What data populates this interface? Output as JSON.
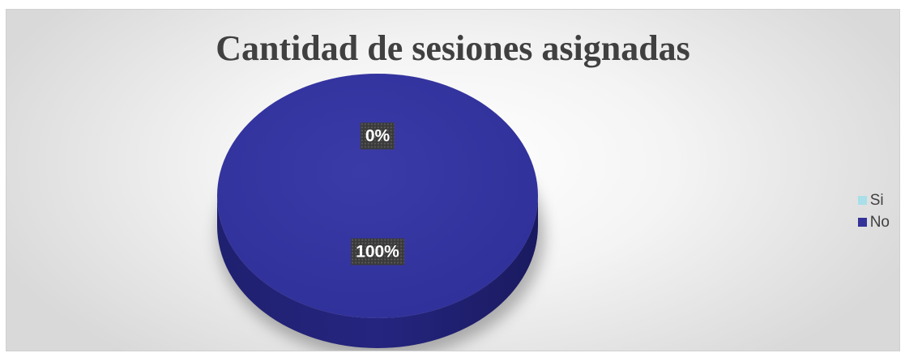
{
  "chart_data": {
    "type": "pie",
    "title": "Cantidad de sesiones asignadas",
    "categories": [
      "Si",
      "No"
    ],
    "values": [
      0,
      100
    ],
    "data_labels": [
      "0%",
      "100%"
    ],
    "colors": [
      "#a9dfe8",
      "#333399"
    ],
    "legend_position": "right",
    "style": "3d-pie"
  }
}
